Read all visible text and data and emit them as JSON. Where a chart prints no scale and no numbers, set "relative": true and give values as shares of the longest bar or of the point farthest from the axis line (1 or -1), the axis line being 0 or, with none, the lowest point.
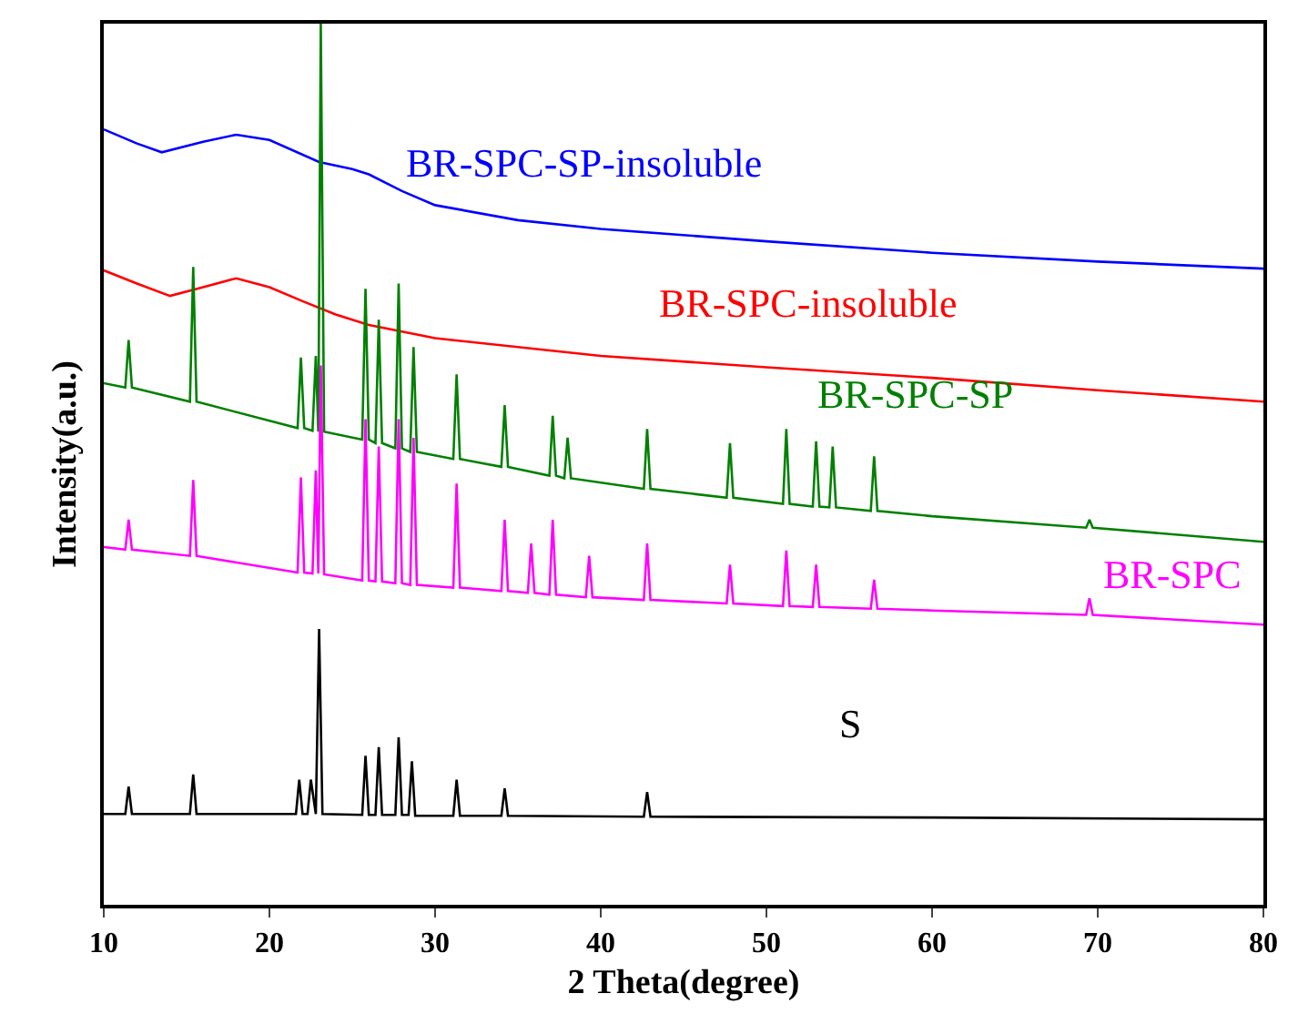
{
  "chart_data": {
    "type": "line",
    "relative": true,
    "xlabel": "2 Theta(degree)",
    "ylabel": "Intensity(a.u.)",
    "xlim": [
      10,
      80
    ],
    "xticks": [
      10,
      20,
      30,
      40,
      50,
      60,
      70,
      80
    ],
    "legend": false,
    "marker": "none",
    "line_style": "solid",
    "tick_labels": "x",
    "series": [
      {
        "name": "BR-SPC-SP-insoluble",
        "color": "#0000ff",
        "x": [
          10,
          12,
          13.5,
          16,
          18,
          20,
          23,
          25,
          26,
          28,
          30,
          35,
          40,
          50,
          60,
          70,
          80
        ],
        "values": [
          0.88,
          0.864,
          0.854,
          0.866,
          0.874,
          0.868,
          0.843,
          0.835,
          0.829,
          0.81,
          0.794,
          0.777,
          0.767,
          0.753,
          0.74,
          0.73,
          0.722
        ]
      },
      {
        "name": "BR-SPC-insoluble",
        "color": "#ff0000",
        "x": [
          10,
          12,
          14,
          16,
          18,
          20,
          22,
          24,
          26,
          30,
          40,
          50,
          60,
          70,
          80
        ],
        "values": [
          0.72,
          0.705,
          0.691,
          0.701,
          0.711,
          0.701,
          0.685,
          0.67,
          0.658,
          0.643,
          0.623,
          0.61,
          0.598,
          0.584,
          0.571
        ]
      },
      {
        "name": "BR-SPC-SP",
        "color": "#008000",
        "x": [
          10,
          11.3,
          11.5,
          11.7,
          15.2,
          15.4,
          15.6,
          21.7,
          21.9,
          22.1,
          22.6,
          22.8,
          22.95,
          23.1,
          23.3,
          25.6,
          25.8,
          26.0,
          26.4,
          26.6,
          26.8,
          27.6,
          27.8,
          28.0,
          28.5,
          28.7,
          28.9,
          31.1,
          31.3,
          31.5,
          34.0,
          34.2,
          34.4,
          36.9,
          37.1,
          37.3,
          37.8,
          38.0,
          38.2,
          42.6,
          42.8,
          43.0,
          47.6,
          47.8,
          48.0,
          51.0,
          51.2,
          51.4,
          52.8,
          53.0,
          53.2,
          53.8,
          54.0,
          54.2,
          56.3,
          56.5,
          56.7,
          60,
          69.3,
          69.5,
          69.7,
          80
        ],
        "values": [
          0.592,
          0.587,
          0.641,
          0.587,
          0.571,
          0.724,
          0.571,
          0.541,
          0.621,
          0.541,
          0.538,
          0.623,
          0.537,
          1.0,
          0.537,
          0.528,
          0.699,
          0.528,
          0.524,
          0.664,
          0.524,
          0.518,
          0.705,
          0.518,
          0.514,
          0.633,
          0.514,
          0.506,
          0.602,
          0.506,
          0.497,
          0.567,
          0.497,
          0.487,
          0.555,
          0.487,
          0.484,
          0.53,
          0.484,
          0.472,
          0.54,
          0.472,
          0.462,
          0.524,
          0.462,
          0.455,
          0.54,
          0.455,
          0.452,
          0.526,
          0.452,
          0.451,
          0.52,
          0.451,
          0.447,
          0.509,
          0.447,
          0.441,
          0.428,
          0.437,
          0.428,
          0.412
        ]
      },
      {
        "name": "BR-SPC",
        "color": "#ff00ff",
        "x": [
          10,
          11.3,
          11.5,
          11.7,
          15.2,
          15.4,
          15.6,
          21.7,
          21.9,
          22.1,
          22.6,
          22.8,
          22.95,
          23.1,
          23.3,
          25.6,
          25.8,
          26.0,
          26.4,
          26.6,
          26.8,
          27.6,
          27.8,
          28.0,
          28.5,
          28.7,
          28.9,
          31.1,
          31.3,
          31.5,
          34.0,
          34.2,
          34.4,
          35.6,
          35.8,
          36.0,
          36.9,
          37.1,
          37.3,
          39.1,
          39.3,
          39.5,
          42.6,
          42.8,
          43.0,
          47.6,
          47.8,
          48.0,
          51.0,
          51.2,
          51.4,
          52.8,
          53.0,
          53.2,
          56.3,
          56.5,
          56.7,
          60,
          69.3,
          69.5,
          69.7,
          80
        ],
        "values": [
          0.406,
          0.403,
          0.437,
          0.403,
          0.396,
          0.482,
          0.396,
          0.377,
          0.485,
          0.377,
          0.376,
          0.493,
          0.376,
          0.612,
          0.375,
          0.368,
          0.551,
          0.368,
          0.367,
          0.52,
          0.367,
          0.365,
          0.551,
          0.365,
          0.363,
          0.53,
          0.363,
          0.36,
          0.478,
          0.36,
          0.356,
          0.437,
          0.356,
          0.354,
          0.41,
          0.354,
          0.352,
          0.437,
          0.352,
          0.349,
          0.396,
          0.349,
          0.346,
          0.41,
          0.346,
          0.342,
          0.386,
          0.342,
          0.339,
          0.402,
          0.339,
          0.338,
          0.386,
          0.338,
          0.336,
          0.369,
          0.336,
          0.334,
          0.329,
          0.348,
          0.329,
          0.318
        ]
      },
      {
        "name": "S",
        "color": "#000000",
        "x": [
          10,
          11.3,
          11.5,
          11.7,
          15.2,
          15.4,
          15.6,
          21.6,
          21.8,
          22.0,
          22.3,
          22.5,
          22.8,
          23.0,
          23.2,
          25.6,
          25.8,
          26.0,
          26.4,
          26.6,
          26.8,
          27.6,
          27.8,
          28.0,
          28.4,
          28.6,
          28.8,
          31.1,
          31.3,
          31.5,
          34.0,
          34.2,
          34.4,
          42.6,
          42.8,
          43.0,
          60,
          80
        ],
        "values": [
          0.103,
          0.103,
          0.134,
          0.103,
          0.103,
          0.148,
          0.103,
          0.103,
          0.142,
          0.103,
          0.103,
          0.142,
          0.103,
          0.313,
          0.103,
          0.102,
          0.169,
          0.102,
          0.102,
          0.179,
          0.102,
          0.102,
          0.19,
          0.102,
          0.102,
          0.163,
          0.101,
          0.101,
          0.142,
          0.101,
          0.101,
          0.132,
          0.101,
          0.1,
          0.128,
          0.1,
          0.099,
          0.097
        ]
      }
    ]
  }
}
